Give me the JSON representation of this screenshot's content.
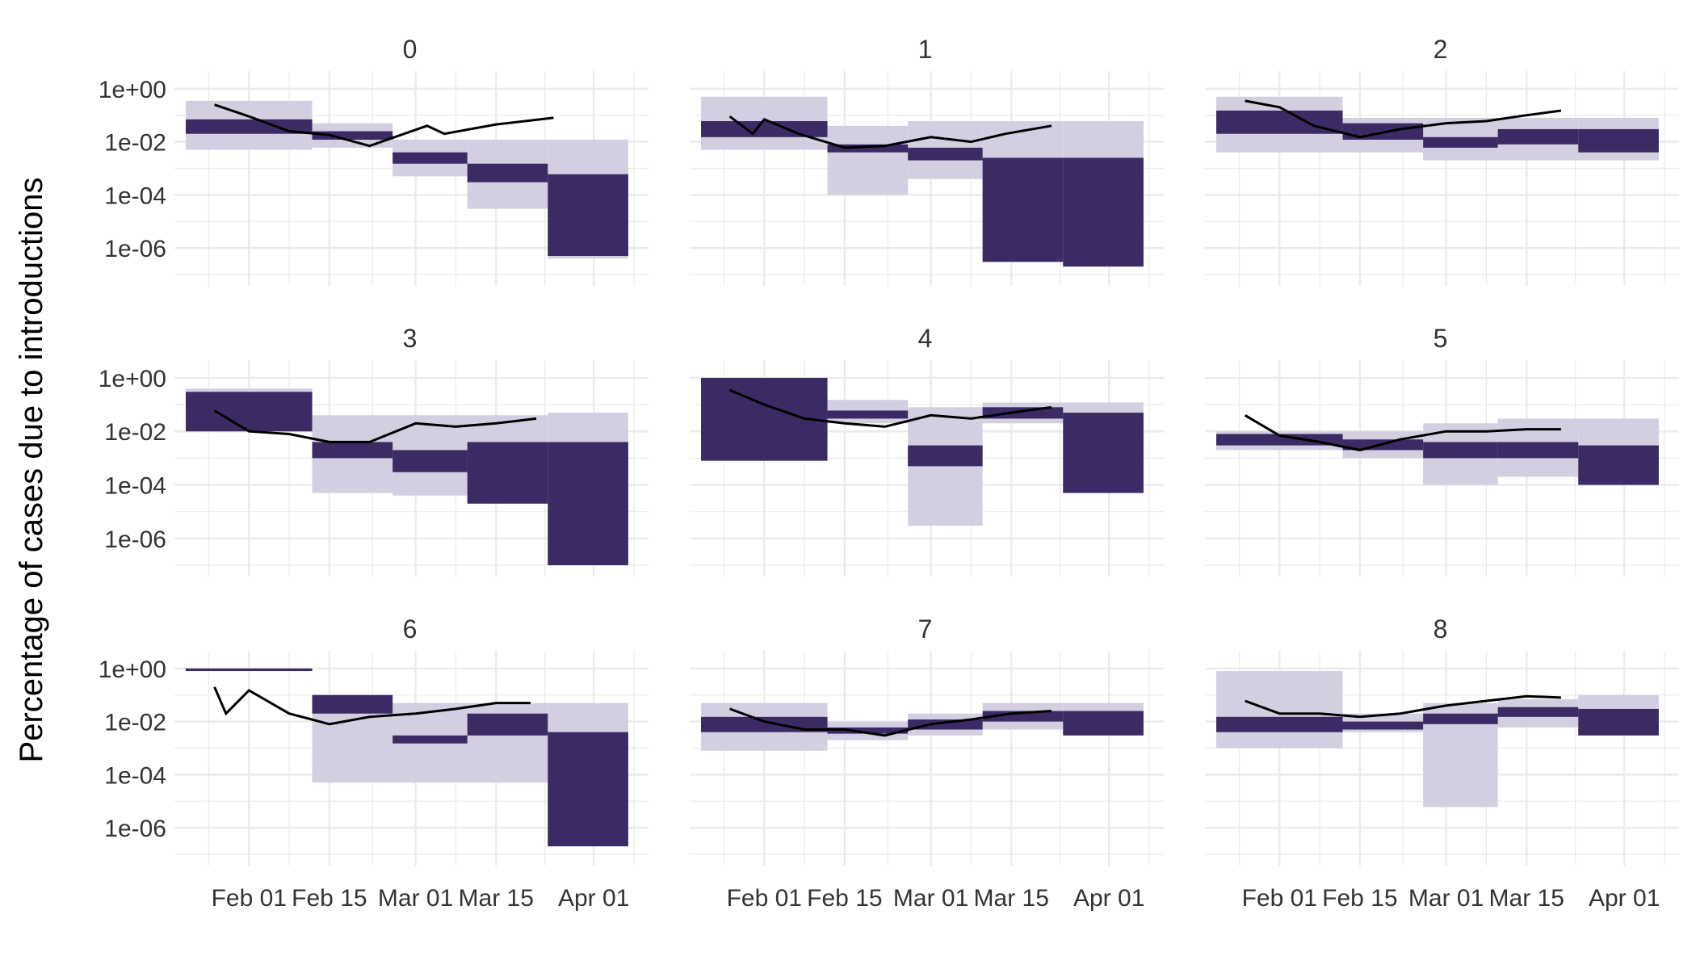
{
  "chart_data": {
    "type": "area",
    "ylabel": "Percentage of cases due to introductions",
    "y_scale": "log10",
    "ylim": [
      "1e-07",
      "1e+00"
    ],
    "y_ticks": [
      "1e+00",
      "1e-02",
      "1e-04",
      "1e-06"
    ],
    "y_tick_values": [
      1,
      0.01,
      0.0001,
      1e-06
    ],
    "x_ticks": [
      "Feb 01",
      "Feb 15",
      "Mar 01",
      "Mar 15",
      "Apr 01"
    ],
    "x_tick_dates": [
      "2020-02-01",
      "2020-02-15",
      "2020-03-01",
      "2020-03-15",
      "2020-04-01"
    ],
    "xlim": [
      "2020-01-21",
      "2020-04-08"
    ],
    "grid": true,
    "colors": {
      "inner_band": "#3b2a63",
      "outer_band": "#d3cfe0",
      "line": "#000000",
      "grid": "#ebebeb",
      "text": "#333333"
    },
    "panels": [
      {
        "title": "0",
        "bands": [
          [
            "2020-01-21",
            "2020-02-12",
            0.02,
            0.07,
            0.005,
            0.35
          ],
          [
            "2020-02-12",
            "2020-02-26",
            0.012,
            0.025,
            0.006,
            0.05
          ],
          [
            "2020-02-26",
            "2020-03-10",
            0.0015,
            0.004,
            0.0005,
            0.012
          ],
          [
            "2020-03-10",
            "2020-03-24",
            0.0003,
            0.0015,
            3e-05,
            0.012
          ],
          [
            "2020-03-24",
            "2020-04-07",
            5e-07,
            0.0006,
            4e-07,
            0.012
          ]
        ],
        "line": [
          [
            "2020-01-26",
            0.25
          ],
          [
            "2020-02-01",
            0.09
          ],
          [
            "2020-02-08",
            0.025
          ],
          [
            "2020-02-15",
            0.018
          ],
          [
            "2020-02-22",
            0.007
          ],
          [
            "2020-02-28",
            0.02
          ],
          [
            "2020-03-03",
            0.04
          ],
          [
            "2020-03-06",
            0.02
          ],
          [
            "2020-03-15",
            0.045
          ],
          [
            "2020-03-25",
            0.08
          ]
        ]
      },
      {
        "title": "1",
        "bands": [
          [
            "2020-01-21",
            "2020-02-12",
            0.015,
            0.06,
            0.005,
            0.5
          ],
          [
            "2020-02-12",
            "2020-02-26",
            0.004,
            0.008,
            0.0001,
            0.04
          ],
          [
            "2020-02-26",
            "2020-03-10",
            0.002,
            0.006,
            0.0004,
            0.06
          ],
          [
            "2020-03-10",
            "2020-03-24",
            3e-07,
            0.0025,
            3e-07,
            0.06
          ],
          [
            "2020-03-24",
            "2020-04-07",
            2e-07,
            0.0025,
            2e-07,
            0.06
          ]
        ],
        "line": [
          [
            "2020-01-26",
            0.09
          ],
          [
            "2020-01-30",
            0.02
          ],
          [
            "2020-02-01",
            0.07
          ],
          [
            "2020-02-07",
            0.02
          ],
          [
            "2020-02-15",
            0.006
          ],
          [
            "2020-02-22",
            0.007
          ],
          [
            "2020-03-01",
            0.015
          ],
          [
            "2020-03-08",
            0.01
          ],
          [
            "2020-03-14",
            0.02
          ],
          [
            "2020-03-22",
            0.04
          ]
        ]
      },
      {
        "title": "2",
        "bands": [
          [
            "2020-01-21",
            "2020-02-12",
            0.02,
            0.15,
            0.004,
            0.5
          ],
          [
            "2020-02-12",
            "2020-02-26",
            0.012,
            0.05,
            0.004,
            0.08
          ],
          [
            "2020-02-26",
            "2020-03-10",
            0.006,
            0.015,
            0.002,
            0.08
          ],
          [
            "2020-03-10",
            "2020-03-24",
            0.008,
            0.03,
            0.002,
            0.08
          ],
          [
            "2020-03-24",
            "2020-04-07",
            0.004,
            0.03,
            0.002,
            0.08
          ]
        ],
        "line": [
          [
            "2020-01-26",
            0.35
          ],
          [
            "2020-02-01",
            0.2
          ],
          [
            "2020-02-07",
            0.04
          ],
          [
            "2020-02-15",
            0.015
          ],
          [
            "2020-02-22",
            0.03
          ],
          [
            "2020-03-01",
            0.05
          ],
          [
            "2020-03-08",
            0.06
          ],
          [
            "2020-03-15",
            0.1
          ],
          [
            "2020-03-21",
            0.15
          ]
        ]
      },
      {
        "title": "3",
        "bands": [
          [
            "2020-01-21",
            "2020-02-12",
            0.01,
            0.3,
            0.01,
            0.4
          ],
          [
            "2020-02-12",
            "2020-02-26",
            0.001,
            0.004,
            5e-05,
            0.04
          ],
          [
            "2020-02-26",
            "2020-03-10",
            0.0003,
            0.002,
            4e-05,
            0.04
          ],
          [
            "2020-03-10",
            "2020-03-24",
            2e-05,
            0.004,
            2e-05,
            0.04
          ],
          [
            "2020-03-24",
            "2020-04-07",
            1e-07,
            0.004,
            1e-07,
            0.05
          ]
        ],
        "line": [
          [
            "2020-01-26",
            0.06
          ],
          [
            "2020-02-01",
            0.01
          ],
          [
            "2020-02-08",
            0.008
          ],
          [
            "2020-02-15",
            0.004
          ],
          [
            "2020-02-22",
            0.004
          ],
          [
            "2020-03-01",
            0.02
          ],
          [
            "2020-03-08",
            0.015
          ],
          [
            "2020-03-15",
            0.02
          ],
          [
            "2020-03-22",
            0.03
          ]
        ]
      },
      {
        "title": "4",
        "bands": [
          [
            "2020-01-21",
            "2020-02-12",
            0.0008,
            1,
            0.0008,
            1
          ],
          [
            "2020-02-12",
            "2020-02-26",
            0.03,
            0.06,
            0.02,
            0.15
          ],
          [
            "2020-02-26",
            "2020-03-10",
            0.0005,
            0.003,
            3e-06,
            0.08
          ],
          [
            "2020-03-10",
            "2020-03-24",
            0.03,
            0.08,
            0.02,
            0.12
          ],
          [
            "2020-03-24",
            "2020-04-07",
            5e-05,
            0.05,
            5e-05,
            0.12
          ]
        ],
        "line": [
          [
            "2020-01-26",
            0.35
          ],
          [
            "2020-02-01",
            0.1
          ],
          [
            "2020-02-08",
            0.03
          ],
          [
            "2020-02-15",
            0.02
          ],
          [
            "2020-02-22",
            0.015
          ],
          [
            "2020-03-01",
            0.04
          ],
          [
            "2020-03-08",
            0.03
          ],
          [
            "2020-03-15",
            0.05
          ],
          [
            "2020-03-22",
            0.08
          ]
        ]
      },
      {
        "title": "5",
        "bands": [
          [
            "2020-01-21",
            "2020-02-12",
            0.003,
            0.008,
            0.002,
            0.01
          ],
          [
            "2020-02-12",
            "2020-02-26",
            0.002,
            0.005,
            0.001,
            0.01
          ],
          [
            "2020-02-26",
            "2020-03-10",
            0.001,
            0.004,
            0.0001,
            0.02
          ],
          [
            "2020-03-10",
            "2020-03-24",
            0.001,
            0.004,
            0.0002,
            0.03
          ],
          [
            "2020-03-24",
            "2020-04-07",
            0.0001,
            0.003,
            0.0001,
            0.03
          ]
        ],
        "line": [
          [
            "2020-01-26",
            0.04
          ],
          [
            "2020-02-01",
            0.007
          ],
          [
            "2020-02-08",
            0.004
          ],
          [
            "2020-02-15",
            0.002
          ],
          [
            "2020-02-22",
            0.005
          ],
          [
            "2020-03-01",
            0.01
          ],
          [
            "2020-03-08",
            0.01
          ],
          [
            "2020-03-15",
            0.012
          ],
          [
            "2020-03-21",
            0.012
          ]
        ]
      },
      {
        "title": "6",
        "bands": [
          [
            "2020-01-21",
            "2020-02-12",
            0.8,
            1,
            0.8,
            1
          ],
          [
            "2020-02-12",
            "2020-02-26",
            0.02,
            0.1,
            5e-05,
            0.1
          ],
          [
            "2020-02-26",
            "2020-03-10",
            0.0015,
            0.003,
            5e-05,
            0.05
          ],
          [
            "2020-03-10",
            "2020-03-24",
            0.003,
            0.02,
            5e-05,
            0.05
          ],
          [
            "2020-03-24",
            "2020-04-07",
            2e-07,
            0.004,
            2e-07,
            0.05
          ]
        ],
        "line": [
          [
            "2020-01-26",
            0.2
          ],
          [
            "2020-01-28",
            0.02
          ],
          [
            "2020-02-01",
            0.15
          ],
          [
            "2020-02-08",
            0.02
          ],
          [
            "2020-02-15",
            0.008
          ],
          [
            "2020-02-22",
            0.015
          ],
          [
            "2020-03-01",
            0.02
          ],
          [
            "2020-03-08",
            0.03
          ],
          [
            "2020-03-15",
            0.05
          ],
          [
            "2020-03-21",
            0.05
          ]
        ]
      },
      {
        "title": "7",
        "bands": [
          [
            "2020-01-21",
            "2020-02-12",
            0.004,
            0.015,
            0.0008,
            0.05
          ],
          [
            "2020-02-12",
            "2020-02-26",
            0.0035,
            0.006,
            0.002,
            0.01
          ],
          [
            "2020-02-26",
            "2020-03-10",
            0.005,
            0.012,
            0.003,
            0.02
          ],
          [
            "2020-03-10",
            "2020-03-24",
            0.01,
            0.025,
            0.005,
            0.05
          ],
          [
            "2020-03-24",
            "2020-04-07",
            0.003,
            0.025,
            0.003,
            0.05
          ]
        ],
        "line": [
          [
            "2020-01-26",
            0.03
          ],
          [
            "2020-02-01",
            0.01
          ],
          [
            "2020-02-08",
            0.005
          ],
          [
            "2020-02-15",
            0.005
          ],
          [
            "2020-02-22",
            0.003
          ],
          [
            "2020-03-01",
            0.008
          ],
          [
            "2020-03-08",
            0.012
          ],
          [
            "2020-03-15",
            0.02
          ],
          [
            "2020-03-22",
            0.025
          ]
        ]
      },
      {
        "title": "8",
        "bands": [
          [
            "2020-01-21",
            "2020-02-12",
            0.004,
            0.015,
            0.001,
            0.8
          ],
          [
            "2020-02-12",
            "2020-02-26",
            0.005,
            0.01,
            0.004,
            0.02
          ],
          [
            "2020-02-26",
            "2020-03-10",
            0.008,
            0.02,
            6e-06,
            0.05
          ],
          [
            "2020-03-10",
            "2020-03-24",
            0.015,
            0.035,
            0.006,
            0.07
          ],
          [
            "2020-03-24",
            "2020-04-07",
            0.003,
            0.03,
            0.003,
            0.1
          ]
        ],
        "line": [
          [
            "2020-01-26",
            0.06
          ],
          [
            "2020-02-01",
            0.02
          ],
          [
            "2020-02-08",
            0.02
          ],
          [
            "2020-02-15",
            0.015
          ],
          [
            "2020-02-22",
            0.02
          ],
          [
            "2020-03-01",
            0.04
          ],
          [
            "2020-03-08",
            0.06
          ],
          [
            "2020-03-15",
            0.09
          ],
          [
            "2020-03-21",
            0.08
          ]
        ]
      }
    ]
  }
}
